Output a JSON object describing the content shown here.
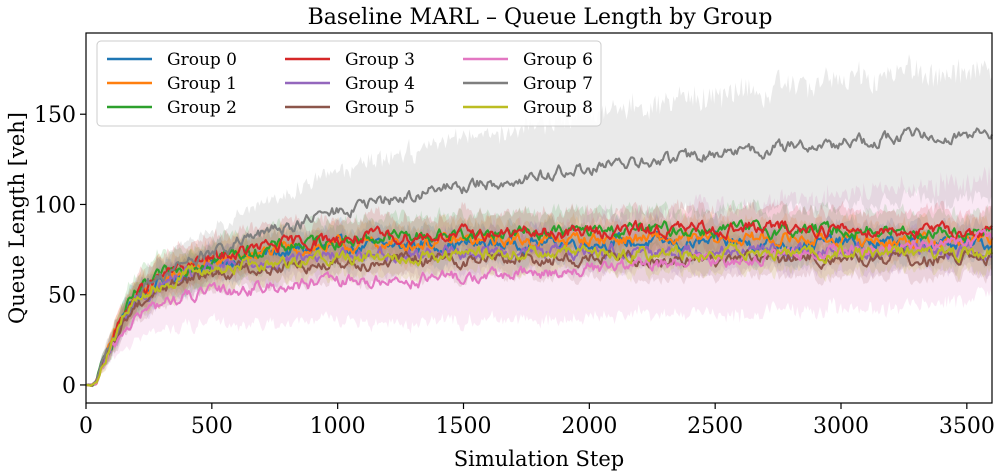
{
  "chart_data": {
    "type": "line",
    "title": "Baseline MARL – Queue Length by Group",
    "xlabel": "Simulation Step",
    "ylabel": "Queue Length [veh]",
    "xlim": [
      0,
      3600
    ],
    "ylim": [
      -10,
      195
    ],
    "xticks": [
      0,
      500,
      1000,
      1500,
      2000,
      2500,
      3000,
      3500
    ],
    "yticks": [
      0,
      50,
      100,
      150
    ],
    "grid": false,
    "legend_position": "top-left",
    "legend_columns": 3,
    "shaded_band": "mean ± spread per group",
    "x": [
      0,
      25,
      40,
      60,
      100,
      150,
      200,
      300,
      400,
      500,
      600,
      700,
      800,
      900,
      1000,
      1200,
      1400,
      1600,
      1800,
      2000,
      2200,
      2400,
      2600,
      2800,
      3000,
      3200,
      3400,
      3600
    ],
    "series": [
      {
        "name": "Group 0",
        "color": "#1f77b4",
        "values": [
          0,
          0,
          1,
          10,
          22,
          38,
          48,
          57,
          63,
          67,
          70,
          72,
          74,
          75,
          76,
          77,
          78,
          78,
          79,
          79,
          79,
          78,
          79,
          78,
          79,
          78,
          78,
          78
        ],
        "band": [
          0,
          0,
          1,
          3,
          6,
          8,
          9,
          10,
          10,
          10,
          10,
          10,
          10,
          10,
          10,
          10,
          10,
          10,
          10,
          10,
          10,
          10,
          10,
          10,
          10,
          10,
          10,
          10
        ]
      },
      {
        "name": "Group 1",
        "color": "#ff7f0e",
        "values": [
          0,
          0,
          1,
          10,
          22,
          38,
          48,
          58,
          64,
          68,
          71,
          73,
          75,
          76,
          77,
          78,
          79,
          80,
          80,
          81,
          81,
          80,
          81,
          81,
          81,
          80,
          80,
          80
        ],
        "band": [
          0,
          0,
          1,
          3,
          6,
          8,
          9,
          10,
          10,
          10,
          10,
          10,
          10,
          10,
          10,
          10,
          10,
          10,
          10,
          10,
          10,
          10,
          10,
          10,
          10,
          10,
          10,
          10
        ]
      },
      {
        "name": "Group 2",
        "color": "#2ca02c",
        "values": [
          0,
          0,
          1,
          11,
          23,
          39,
          50,
          60,
          66,
          70,
          73,
          75,
          77,
          79,
          80,
          82,
          83,
          84,
          85,
          85,
          86,
          86,
          86,
          86,
          86,
          85,
          85,
          84
        ],
        "band": [
          0,
          0,
          1,
          3,
          6,
          8,
          9,
          10,
          11,
          11,
          11,
          11,
          11,
          11,
          11,
          11,
          11,
          11,
          11,
          11,
          11,
          11,
          11,
          11,
          11,
          11,
          11,
          11
        ]
      },
      {
        "name": "Group 3",
        "color": "#d62728",
        "values": [
          0,
          0,
          1,
          11,
          23,
          39,
          50,
          60,
          66,
          70,
          73,
          76,
          78,
          80,
          81,
          82,
          83,
          84,
          84,
          85,
          86,
          86,
          87,
          87,
          86,
          86,
          85,
          85
        ],
        "band": [
          0,
          0,
          1,
          3,
          6,
          8,
          9,
          10,
          11,
          11,
          11,
          11,
          11,
          11,
          11,
          11,
          11,
          11,
          11,
          11,
          11,
          11,
          11,
          11,
          11,
          11,
          11,
          11
        ]
      },
      {
        "name": "Group 4",
        "color": "#9467bd",
        "values": [
          0,
          0,
          1,
          10,
          21,
          36,
          46,
          55,
          60,
          64,
          66,
          68,
          70,
          71,
          72,
          73,
          73,
          74,
          74,
          74,
          75,
          74,
          75,
          74,
          75,
          74,
          74,
          74
        ],
        "band": [
          0,
          0,
          1,
          3,
          6,
          8,
          9,
          10,
          10,
          10,
          10,
          10,
          10,
          10,
          10,
          10,
          10,
          10,
          10,
          10,
          10,
          10,
          10,
          10,
          10,
          10,
          10,
          10
        ]
      },
      {
        "name": "Group 5",
        "color": "#8c564b",
        "values": [
          0,
          0,
          1,
          10,
          21,
          35,
          45,
          54,
          59,
          62,
          64,
          65,
          66,
          67,
          68,
          69,
          69,
          70,
          70,
          70,
          70,
          70,
          70,
          70,
          70,
          70,
          70,
          70
        ],
        "band": [
          0,
          0,
          1,
          3,
          6,
          8,
          9,
          10,
          10,
          10,
          10,
          10,
          10,
          10,
          10,
          10,
          10,
          10,
          10,
          10,
          10,
          10,
          10,
          10,
          10,
          10,
          10,
          10
        ]
      },
      {
        "name": "Group 6",
        "color": "#e377c2",
        "values": [
          0,
          0,
          1,
          8,
          18,
          30,
          38,
          45,
          49,
          51,
          53,
          54,
          55,
          56,
          57,
          58,
          59,
          60,
          62,
          64,
          66,
          68,
          70,
          72,
          74,
          76,
          78,
          80
        ],
        "band": [
          0,
          0,
          1,
          3,
          6,
          10,
          13,
          15,
          17,
          18,
          19,
          20,
          20,
          21,
          22,
          23,
          24,
          25,
          26,
          27,
          28,
          29,
          30,
          31,
          32,
          33,
          33,
          33
        ]
      },
      {
        "name": "Group 7",
        "color": "#7f7f7f",
        "values": [
          0,
          0,
          1,
          11,
          23,
          39,
          50,
          61,
          68,
          73,
          78,
          83,
          88,
          92,
          96,
          102,
          108,
          112,
          116,
          120,
          123,
          126,
          129,
          132,
          134,
          137,
          139,
          140
        ],
        "band": [
          0,
          0,
          1,
          3,
          6,
          8,
          9,
          10,
          11,
          12,
          14,
          16,
          18,
          20,
          22,
          24,
          26,
          28,
          29,
          30,
          31,
          32,
          33,
          34,
          35,
          35,
          35,
          35
        ]
      },
      {
        "name": "Group 8",
        "color": "#bcbd22",
        "values": [
          0,
          0,
          1,
          10,
          22,
          37,
          47,
          56,
          61,
          64,
          66,
          68,
          69,
          70,
          71,
          72,
          72,
          73,
          73,
          73,
          73,
          73,
          73,
          73,
          73,
          73,
          73,
          73
        ],
        "band": [
          0,
          0,
          1,
          3,
          6,
          8,
          9,
          10,
          10,
          10,
          10,
          10,
          10,
          10,
          10,
          10,
          10,
          10,
          10,
          10,
          10,
          10,
          10,
          10,
          10,
          10,
          10,
          10
        ]
      }
    ]
  }
}
